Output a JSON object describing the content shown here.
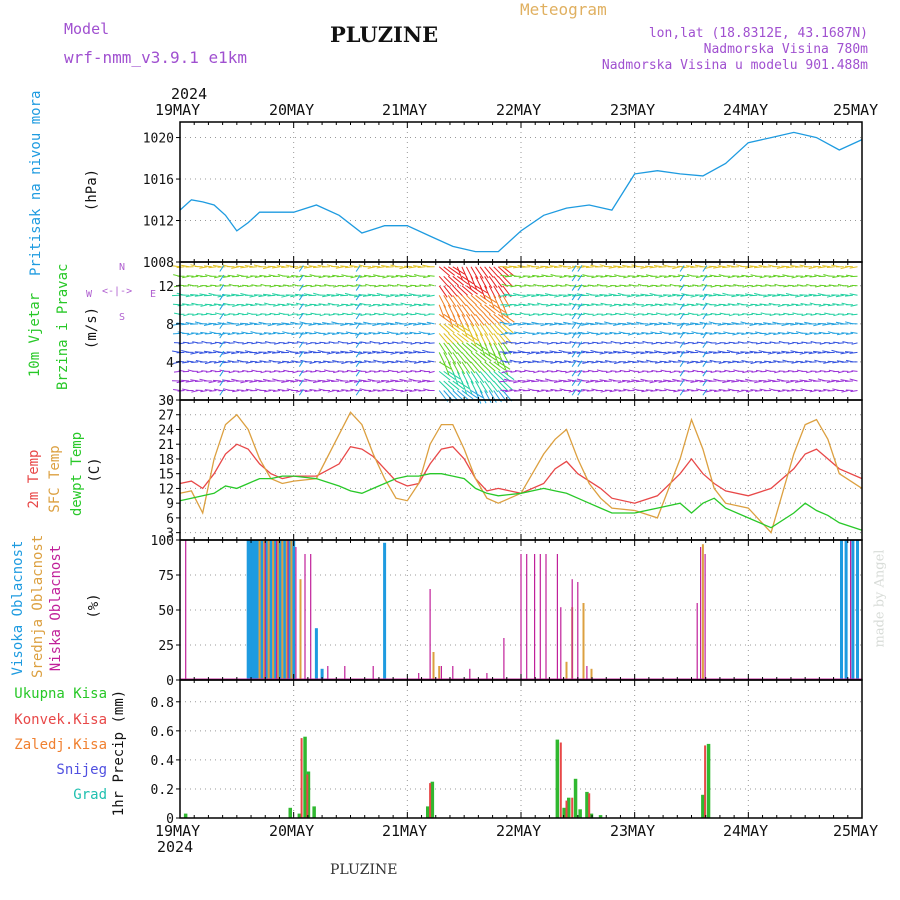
{
  "header": {
    "model_label": "Model",
    "model_name": "wrf-nmm_v3.9.1 e1km",
    "title": "PLUZINE",
    "meteogram": "Meteogram",
    "lonlat": "lon,lat (18.8312E, 43.1687N)",
    "elevation": "Nadmorska Visina 780m",
    "model_elevation": "Nadmorska Visina u modelu 901.488m",
    "year": "2024",
    "footer": "PLUZINE",
    "credit": "made by Angel"
  },
  "dates": [
    "19MAY",
    "20MAY",
    "21MAY",
    "22MAY",
    "23MAY",
    "24MAY",
    "25MAY"
  ],
  "panel_labels": {
    "pressure": [
      "Pritisak na nivou mora",
      "(hPa)"
    ],
    "wind": [
      "10m Vjetar",
      "Brzina i Pravac",
      "(m/s)"
    ],
    "wind_compass": [
      "N",
      "<-|->",
      "S",
      "W",
      "E"
    ],
    "temp": [
      "2m Temp",
      "SFC Temp",
      "dewpt Temp",
      "(C)"
    ],
    "cloud": [
      "Visoka Oblacnost",
      "Srednja Oblacnost",
      "Niska Oblacnost",
      "(%)"
    ],
    "precip_legend": [
      "Ukupna Kisa",
      "Konvek.Kisa",
      "Zaledj.Kisa",
      "Snijeg",
      "Grad"
    ],
    "precip_axis": "1hr Precip (mm)"
  },
  "colors": {
    "pressure": "#1e9be0",
    "temp2m": "#e84848",
    "sfc": "#dca040",
    "dew": "#28c828",
    "cloud_high": "#1e9be0",
    "cloud_mid": "#dca040",
    "cloud_low": "#c0209a",
    "precip_total": "#30b830",
    "precip_conv": "#e84848",
    "precip_frz": "#f08030",
    "snow": "#5050e0",
    "hail": "#20c0b0",
    "label_blue": "#1e9be0",
    "label_green": "#28c828",
    "label_red": "#e84848",
    "label_orange": "#dca040",
    "label_magenta": "#c0209a",
    "label_purple": "#b060d0"
  },
  "chart_data": [
    {
      "type": "line",
      "name": "pressure",
      "ylabel": "Pritisak na nivou mora (hPa)",
      "ylim": [
        1008,
        1021.5
      ],
      "yticks": [
        1008,
        1012,
        1016,
        1020
      ],
      "x": [
        0,
        0.1,
        0.2,
        0.3,
        0.4,
        0.5,
        0.6,
        0.7,
        0.8,
        1.0,
        1.2,
        1.4,
        1.6,
        1.8,
        2.0,
        2.2,
        2.4,
        2.6,
        2.8,
        3.0,
        3.2,
        3.4,
        3.6,
        3.8,
        4.0,
        4.2,
        4.4,
        4.6,
        4.8,
        5.0,
        5.2,
        5.4,
        5.6,
        5.8,
        6.0
      ],
      "series": [
        {
          "values": [
            1013.0,
            1014.0,
            1013.8,
            1013.5,
            1012.5,
            1011.0,
            1011.8,
            1012.8,
            1012.8,
            1012.8,
            1013.5,
            1012.5,
            1010.8,
            1011.5,
            1011.5,
            1010.5,
            1009.5,
            1009.0,
            1009.0,
            1011.0,
            1012.5,
            1013.2,
            1013.5,
            1013.0,
            1016.5,
            1016.8,
            1016.5,
            1016.3,
            1017.5,
            1019.5,
            1020.0,
            1020.5,
            1020.0,
            1018.8,
            1019.8
          ]
        }
      ]
    },
    {
      "type": "line",
      "name": "temperature",
      "ylabel": "(C)",
      "ylim": [
        1.5,
        30
      ],
      "yticks": [
        3,
        6,
        9,
        12,
        15,
        18,
        21,
        24,
        27,
        30
      ],
      "x": [
        0,
        0.1,
        0.2,
        0.3,
        0.4,
        0.5,
        0.6,
        0.7,
        0.8,
        0.9,
        1.0,
        1.2,
        1.4,
        1.5,
        1.6,
        1.7,
        1.8,
        1.9,
        2.0,
        2.1,
        2.2,
        2.3,
        2.4,
        2.5,
        2.6,
        2.7,
        2.8,
        3.0,
        3.2,
        3.3,
        3.4,
        3.5,
        3.6,
        3.7,
        3.8,
        4.0,
        4.2,
        4.4,
        4.5,
        4.6,
        4.7,
        4.8,
        5.0,
        5.2,
        5.4,
        5.5,
        5.6,
        5.7,
        5.8,
        6.0
      ],
      "series": [
        {
          "name": "2m Temp",
          "values": [
            13,
            13.5,
            12,
            15,
            19,
            21,
            20,
            17,
            15,
            14,
            14.5,
            14.5,
            17,
            20.5,
            20,
            18.5,
            16,
            13.5,
            12.5,
            13,
            17,
            20,
            20.5,
            18,
            14,
            11.5,
            12,
            11,
            13,
            16,
            17.5,
            15,
            13.5,
            12,
            10,
            9,
            10.5,
            15,
            18,
            15,
            13,
            11.5,
            10.5,
            12,
            16,
            19,
            20,
            18,
            16,
            14
          ]
        },
        {
          "name": "SFC Temp",
          "values": [
            11,
            11.5,
            7,
            18,
            25,
            27,
            24,
            18,
            14,
            13,
            13.5,
            14,
            23,
            27.5,
            25,
            19,
            14,
            10,
            9.5,
            13,
            21,
            25,
            25,
            20,
            14,
            10,
            9,
            11,
            19,
            22,
            24,
            18,
            13,
            10,
            8,
            7.5,
            6,
            18,
            26,
            20,
            12,
            9,
            8,
            3,
            19,
            25,
            26,
            22,
            15,
            12
          ]
        },
        {
          "name": "dewpt Temp",
          "values": [
            9.5,
            10,
            10.5,
            11,
            12.5,
            12,
            13,
            14,
            14,
            14.5,
            14.5,
            14,
            12.5,
            11.5,
            11,
            12,
            13,
            14,
            14.5,
            14.5,
            15,
            15,
            14.5,
            14,
            12,
            11,
            10.5,
            11,
            12,
            11.5,
            11,
            10,
            9,
            8,
            7,
            7,
            8,
            9,
            7,
            9,
            10,
            8,
            6,
            4,
            7,
            9,
            7.5,
            6.5,
            5,
            3.5
          ]
        }
      ]
    },
    {
      "type": "bar",
      "name": "cloud",
      "ylabel": "(%)",
      "ylim": [
        0,
        100
      ],
      "yticks": [
        0,
        25,
        50,
        75,
        100
      ],
      "series": [
        {
          "name": "Visoka Oblacnost",
          "x": [
            0.6,
            0.62,
            0.64,
            0.66,
            0.68,
            0.72,
            0.76,
            0.8,
            0.84,
            0.88,
            0.92,
            0.96,
            1.0,
            1.2,
            1.25,
            1.8,
            5.82,
            5.86,
            5.92,
            5.96
          ],
          "values": [
            100,
            100,
            100,
            100,
            100,
            100,
            100,
            100,
            100,
            100,
            100,
            100,
            100,
            37,
            8,
            98,
            100,
            100,
            100,
            100
          ]
        },
        {
          "name": "Srednja Oblacnost",
          "x": [
            0.7,
            0.74,
            0.78,
            0.82,
            0.86,
            0.9,
            0.94,
            0.98,
            1.06,
            2.23,
            2.28,
            3.4,
            3.45,
            3.55,
            3.62,
            4.6
          ],
          "values": [
            100,
            100,
            100,
            100,
            100,
            100,
            100,
            100,
            72,
            20,
            10,
            13,
            52,
            55,
            8,
            97
          ]
        },
        {
          "name": "Niska Oblacnost",
          "x": [
            0.05,
            0.75,
            0.85,
            0.95,
            1.02,
            1.1,
            1.15,
            1.3,
            1.45,
            1.7,
            2.1,
            2.2,
            2.3,
            2.4,
            2.55,
            2.7,
            2.85,
            3.0,
            3.05,
            3.12,
            3.17,
            3.22,
            3.32,
            3.35,
            3.45,
            3.5,
            3.58,
            4.55,
            4.58,
            4.62,
            5.9
          ],
          "values": [
            100,
            100,
            100,
            100,
            95,
            90,
            90,
            10,
            10,
            10,
            5,
            65,
            10,
            10,
            8,
            5,
            30,
            90,
            90,
            90,
            90,
            90,
            90,
            52,
            72,
            70,
            10,
            55,
            95,
            90,
            100
          ]
        }
      ]
    },
    {
      "type": "bar",
      "name": "precipitation",
      "ylabel": "1hr Precip (mm)",
      "ylim": [
        0,
        0.95
      ],
      "yticks": [
        0,
        0.2,
        0.4,
        0.6,
        0.8
      ],
      "series": [
        {
          "name": "Ukupna Kisa",
          "x": [
            0.05,
            0.97,
            1.05,
            1.1,
            1.13,
            1.18,
            2.18,
            2.22,
            3.32,
            3.38,
            3.42,
            3.48,
            3.52,
            3.58,
            3.62,
            3.7,
            4.6,
            4.65
          ],
          "values": [
            0.03,
            0.07,
            0.03,
            0.56,
            0.32,
            0.08,
            0.08,
            0.25,
            0.54,
            0.07,
            0.14,
            0.27,
            0.06,
            0.18,
            0.03,
            0.02,
            0.16,
            0.51
          ]
        },
        {
          "name": "Konvek.Kisa",
          "x": [
            1.07,
            1.12,
            2.2,
            3.35,
            3.4,
            3.45,
            3.6,
            4.62
          ],
          "values": [
            0.55,
            0.3,
            0.24,
            0.52,
            0.12,
            0.14,
            0.17,
            0.5
          ]
        }
      ]
    },
    {
      "type": "quiver",
      "name": "wind",
      "ylabel": "(m/s)",
      "ylim": [
        0,
        14.5
      ],
      "yticks": [
        0,
        4,
        8,
        12
      ]
    }
  ]
}
